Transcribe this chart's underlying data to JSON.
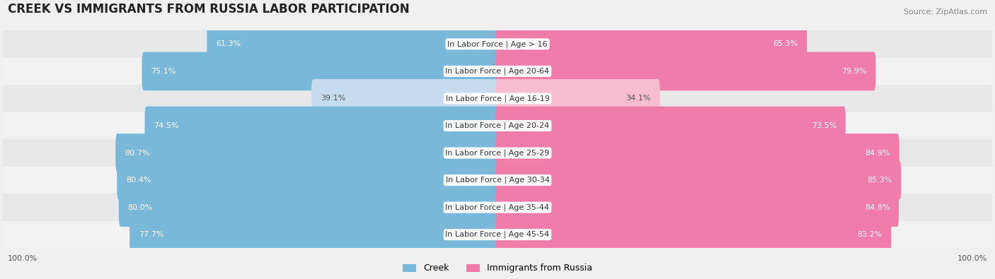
{
  "title": "CREEK VS IMMIGRANTS FROM RUSSIA LABOR PARTICIPATION",
  "source": "Source: ZipAtlas.com",
  "categories": [
    "In Labor Force | Age > 16",
    "In Labor Force | Age 20-64",
    "In Labor Force | Age 16-19",
    "In Labor Force | Age 20-24",
    "In Labor Force | Age 25-29",
    "In Labor Force | Age 30-34",
    "In Labor Force | Age 35-44",
    "In Labor Force | Age 45-54"
  ],
  "creek_values": [
    61.3,
    75.1,
    39.1,
    74.5,
    80.7,
    80.4,
    80.0,
    77.7
  ],
  "russia_values": [
    65.3,
    79.9,
    34.1,
    73.5,
    84.9,
    85.3,
    84.8,
    83.2
  ],
  "creek_color": "#7ab8d9",
  "creek_color_light": "#c6dcee",
  "russia_color": "#f07caa",
  "russia_color_light": "#f7bdd1",
  "bar_height": 0.62,
  "background_color": "#f0f0f0",
  "title_fontsize": 12,
  "label_fontsize": 8,
  "value_fontsize": 8,
  "legend_fontsize": 9,
  "source_fontsize": 8,
  "bottom_label": "100.0%",
  "max_value": 100.0
}
